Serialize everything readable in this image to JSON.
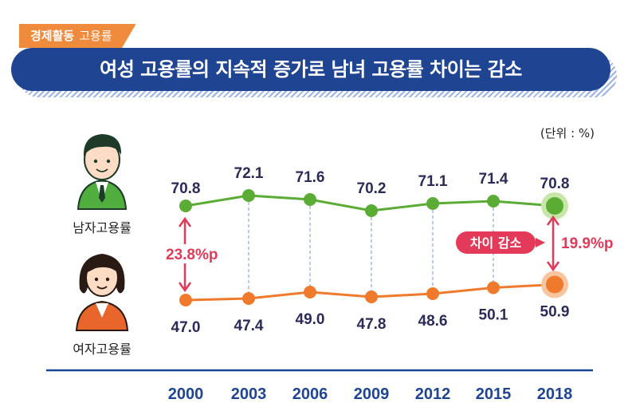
{
  "header": {
    "category": "경제활동",
    "category_sub": "고용률",
    "title": "여성 고용률의 지속적 증가로 남녀 고용률 차이는 감소"
  },
  "unit_note": "(단위 : %)",
  "side_labels": {
    "male": "남자고용률",
    "female": "여자고용률"
  },
  "annotations": {
    "gap_2000": "23.8%p",
    "gap_2018": "19.9%p",
    "badge": "차이 감소"
  },
  "colors": {
    "male": "#5aac34",
    "female": "#f07a2c",
    "accent": "#1f4592",
    "gap": "#e23a58",
    "tag": "#f08a3c"
  },
  "chart_data": {
    "type": "line",
    "x": [
      "2000",
      "2003",
      "2006",
      "2009",
      "2012",
      "2015",
      "2018"
    ],
    "series": [
      {
        "name": "남자고용률",
        "values": [
          70.8,
          72.1,
          71.6,
          70.2,
          71.1,
          71.4,
          70.8
        ]
      },
      {
        "name": "여자고용률",
        "values": [
          47.0,
          47.4,
          49.0,
          47.8,
          48.6,
          50.1,
          50.9
        ]
      }
    ],
    "grid": false
  }
}
